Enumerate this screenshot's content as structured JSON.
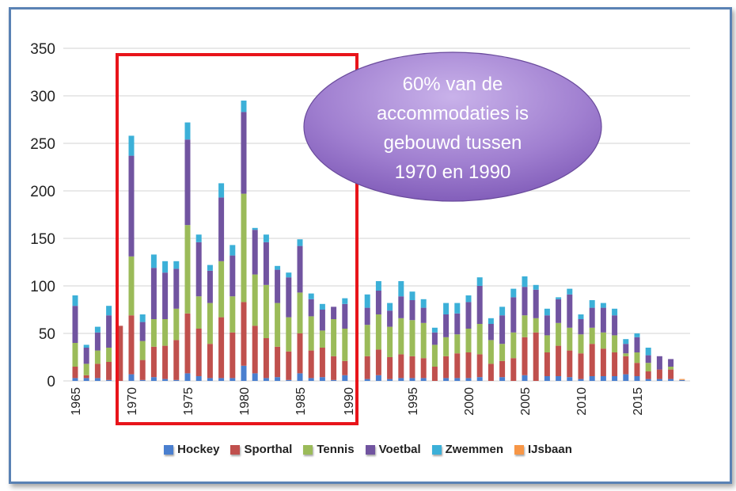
{
  "chart_data": {
    "type": "bar",
    "stacked": true,
    "title": "",
    "xlabel": "",
    "ylabel": "",
    "ylim": [
      0,
      350
    ],
    "yticks": [
      0,
      50,
      100,
      150,
      200,
      250,
      300,
      350
    ],
    "xtick_labels": [
      "1965",
      "1970",
      "1975",
      "1980",
      "1985",
      "1990",
      "1995",
      "2000",
      "2005",
      "2010",
      "2015"
    ],
    "grid": true,
    "legend_position": "bottom",
    "categories": [
      1965,
      1966,
      1967,
      1968,
      1969,
      1970,
      1971,
      1972,
      1973,
      1974,
      1975,
      1976,
      1977,
      1978,
      1979,
      1980,
      1981,
      1982,
      1983,
      1984,
      1985,
      1986,
      1987,
      1988,
      1989,
      1990,
      1991,
      1992,
      1993,
      1994,
      1995,
      1996,
      1997,
      1998,
      1999,
      2000,
      2001,
      2002,
      2003,
      2004,
      2005,
      2006,
      2007,
      2008,
      2009,
      2010,
      2011,
      2012,
      2013,
      2014,
      2015,
      2016,
      2017,
      2018,
      2019
    ],
    "series": [
      {
        "name": "Hockey",
        "color": "#4a7fcf",
        "values": [
          3,
          3,
          3,
          1,
          0,
          7,
          1,
          4,
          2,
          1,
          8,
          5,
          3,
          3,
          3,
          16,
          8,
          3,
          4,
          1,
          8,
          3,
          4,
          1,
          6,
          0,
          2,
          6,
          2,
          3,
          3,
          3,
          0,
          3,
          3,
          3,
          4,
          0,
          4,
          0,
          6,
          0,
          5,
          5,
          4,
          2,
          5,
          5,
          5,
          7,
          5,
          2,
          2,
          2,
          1
        ]
      },
      {
        "name": "Sporthal",
        "color": "#c0504d",
        "values": [
          12,
          3,
          15,
          19,
          58,
          62,
          21,
          32,
          35,
          42,
          63,
          50,
          36,
          64,
          48,
          67,
          50,
          42,
          32,
          30,
          42,
          29,
          31,
          25,
          15,
          0,
          24,
          27,
          23,
          25,
          23,
          21,
          15,
          23,
          26,
          27,
          24,
          18,
          17,
          24,
          40,
          51,
          25,
          32,
          28,
          27,
          34,
          29,
          25,
          19,
          14,
          8,
          10,
          10,
          0
        ]
      },
      {
        "name": "Tennis",
        "color": "#9bbb59",
        "values": [
          25,
          12,
          14,
          15,
          0,
          62,
          20,
          29,
          28,
          33,
          93,
          34,
          43,
          59,
          38,
          114,
          54,
          56,
          46,
          36,
          43,
          36,
          18,
          39,
          34,
          0,
          33,
          37,
          32,
          38,
          38,
          37,
          23,
          20,
          20,
          25,
          32,
          25,
          18,
          27,
          23,
          15,
          18,
          24,
          24,
          20,
          17,
          17,
          18,
          3,
          11,
          9,
          0,
          3,
          0
        ]
      },
      {
        "name": "Voetbal",
        "color": "#7154a0",
        "values": [
          39,
          17,
          19,
          34,
          0,
          106,
          20,
          54,
          49,
          42,
          90,
          57,
          34,
          67,
          43,
          86,
          47,
          45,
          35,
          42,
          49,
          18,
          22,
          13,
          26,
          0,
          18,
          25,
          17,
          23,
          21,
          16,
          13,
          24,
          22,
          28,
          40,
          17,
          30,
          37,
          30,
          30,
          21,
          25,
          35,
          16,
          21,
          26,
          21,
          10,
          16,
          8,
          14,
          8,
          0
        ]
      },
      {
        "name": "Zwemmen",
        "color": "#3cb0d8",
        "values": [
          11,
          3,
          6,
          10,
          0,
          21,
          8,
          14,
          12,
          8,
          18,
          8,
          6,
          15,
          11,
          12,
          2,
          8,
          4,
          5,
          7,
          6,
          6,
          0,
          6,
          0,
          14,
          10,
          8,
          16,
          9,
          9,
          5,
          12,
          11,
          7,
          9,
          6,
          9,
          9,
          11,
          5,
          7,
          2,
          6,
          5,
          8,
          5,
          7,
          5,
          4,
          8,
          0,
          0,
          0
        ]
      },
      {
        "name": "IJsbaan",
        "color": "#f79646",
        "values": [
          0,
          0,
          0,
          0,
          0,
          0,
          0,
          0,
          0,
          0,
          0,
          0,
          0,
          0,
          0,
          0,
          0,
          0,
          0,
          0,
          0,
          0,
          0,
          0,
          0,
          0,
          0,
          0,
          0,
          0,
          0,
          0,
          0,
          0,
          0,
          0,
          0,
          0,
          0,
          0,
          0,
          0,
          0,
          0,
          0,
          0,
          0,
          0,
          0,
          0,
          0,
          0,
          0,
          0,
          1
        ]
      }
    ],
    "annotation": {
      "text_lines": [
        "60% van de",
        "accommodaties is",
        "gebouwd tussen",
        "1970 en 1990"
      ],
      "highlight_range": [
        1970,
        1990
      ],
      "highlight_color": "#e8141a"
    }
  }
}
